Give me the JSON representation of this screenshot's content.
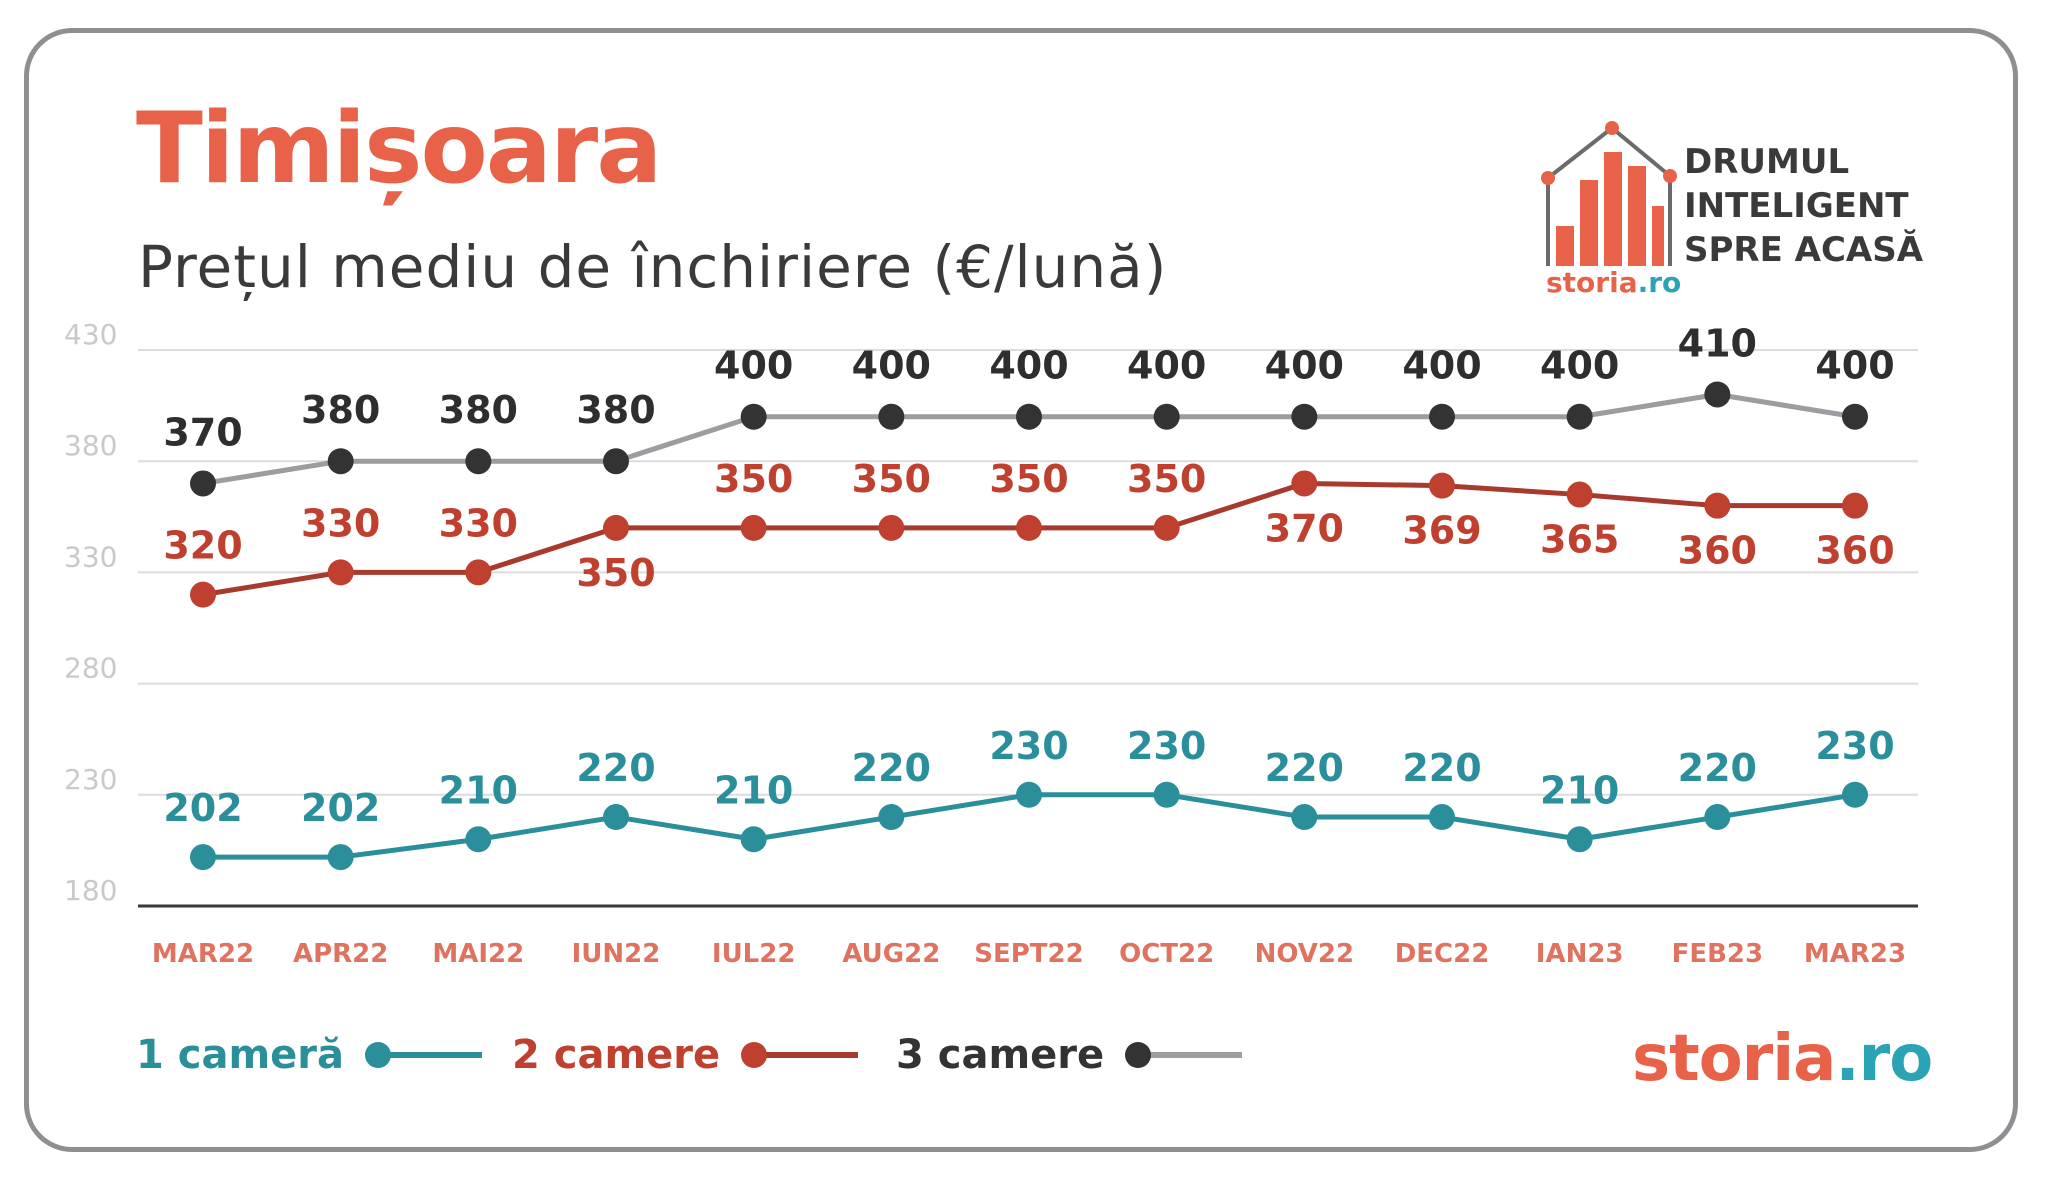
{
  "header": {
    "title": "Timișoara",
    "subtitle": "Prețul mediu de închiriere (€/lună)"
  },
  "brand": {
    "tagline_lines": [
      "DRUMUL",
      "INTELIGENT",
      "SPRE ACASĂ"
    ],
    "logo_word": "storia",
    "logo_suffix": ".ro",
    "accent_color": "#e8624a",
    "secondary_color": "#2aa3b5",
    "icon": "house-bar-chart-icon"
  },
  "legend": [
    {
      "label": "1 cameră",
      "color": "#2a8f9b",
      "marker": "#2a8f9b"
    },
    {
      "label": "2 camere",
      "color": "#b2392c",
      "marker": "#c0402f"
    },
    {
      "label": "3 camere",
      "color": "#3a3a3a",
      "marker": "#333333"
    }
  ],
  "chart_data": {
    "type": "line",
    "title": "Timișoara",
    "subtitle": "Prețul mediu de închiriere (€/lună)",
    "categories": [
      "MAR22",
      "APR22",
      "MAI22",
      "IUN22",
      "IUL22",
      "AUG22",
      "SEPT22",
      "OCT22",
      "NOV22",
      "DEC22",
      "IAN23",
      "FEB23",
      "MAR23"
    ],
    "yticks": [
      180,
      230,
      280,
      330,
      380,
      430
    ],
    "ylim": [
      180,
      430
    ],
    "grid": true,
    "legend_position": "bottom",
    "series": [
      {
        "name": "1 cameră",
        "line_color": "#2a8f9b",
        "marker_color": "#2a8f9b",
        "label_color": "#2a8f9b",
        "values": [
          202,
          202,
          210,
          220,
          210,
          220,
          230,
          230,
          220,
          220,
          210,
          220,
          230
        ],
        "labels": [
          "202",
          "202",
          "210",
          "220",
          "210",
          "220",
          "230",
          "230",
          "220",
          "220",
          "210",
          "220",
          "230"
        ]
      },
      {
        "name": "2 camere",
        "line_color": "#a8392d",
        "marker_color": "#c0402f",
        "label_color": "#c0402f",
        "values": [
          320,
          330,
          330,
          350,
          350,
          350,
          350,
          350,
          370,
          369,
          365,
          360,
          360
        ],
        "labels": [
          "320",
          "330",
          "330",
          "350",
          "350",
          "350",
          "350",
          "350",
          "370",
          "369",
          "365",
          "360",
          "360"
        ]
      },
      {
        "name": "3 camere",
        "line_color": "#9c9ca1",
        "marker_color": "#333333",
        "label_color": "#2e2e2e",
        "values": [
          370,
          380,
          380,
          380,
          400,
          400,
          400,
          400,
          400,
          400,
          400,
          410,
          400
        ],
        "labels": [
          "370",
          "380",
          "380",
          "380",
          "400",
          "400",
          "400",
          "400",
          "400",
          "400",
          "400",
          "410",
          "400"
        ]
      }
    ]
  }
}
